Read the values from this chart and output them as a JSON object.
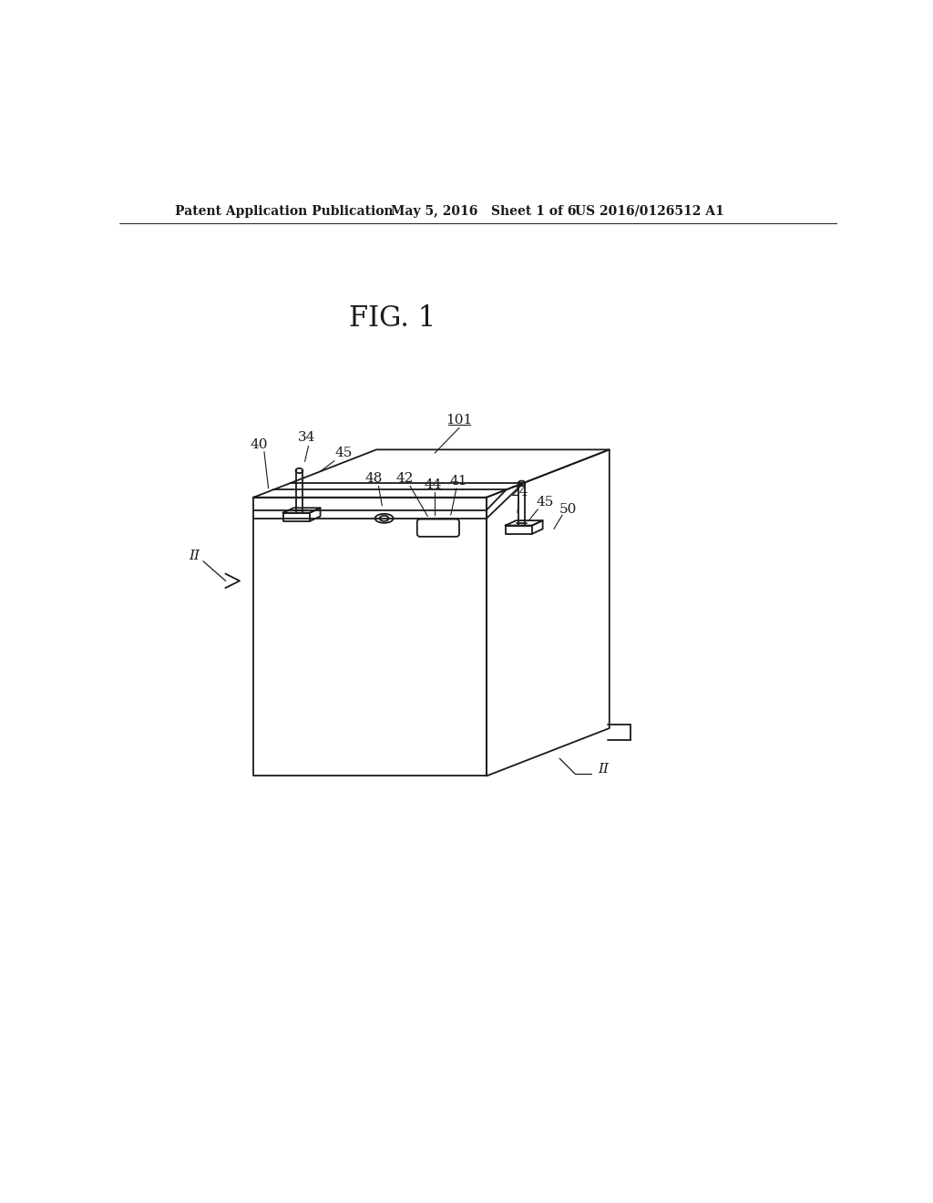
{
  "bg_color": "#ffffff",
  "line_color": "#1a1a1a",
  "header_left": "Patent Application Publication",
  "header_mid": "May 5, 2016   Sheet 1 of 6",
  "header_right": "US 2016/0126512 A1",
  "fig_label": "FIG. 1",
  "label_101": "101",
  "label_40": "40",
  "label_34": "34",
  "label_45a": "45",
  "label_48": "48",
  "label_42": "42",
  "label_44": "44",
  "label_41": "41",
  "label_24": "24",
  "label_45b": "45",
  "label_50": "50",
  "label_IIa": "II",
  "label_IIb": "II",
  "header_fontsize": 10,
  "fig_fontsize": 22,
  "label_fontsize": 11
}
